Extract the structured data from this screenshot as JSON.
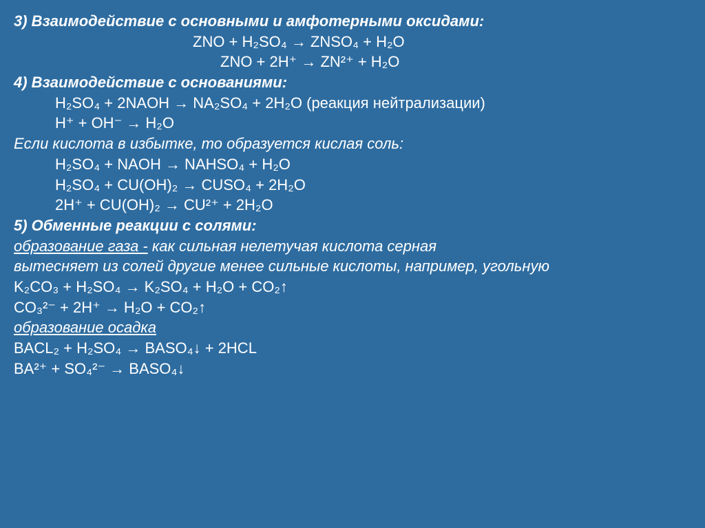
{
  "slide": {
    "bg_color": "#2e6ca0",
    "text_color": "#ffffff",
    "font_family": "Arial",
    "base_fontsize": 22,
    "lines": {
      "h3": "3)    Взаимодействие с основными и амфотерными  оксидами:",
      "eq1": "ZNO + H₂SO₄ → ZNSO₄ + H₂O",
      "eq2": "ZNO + 2H⁺ → ZN²⁺ + H₂O",
      "h4": "4)    Взаимодействие с основаниями:",
      "eq3": "H₂SO₄ + 2NAOH → NA₂SO₄ + 2H₂O (реакция нейтрализации)",
      "eq4": "H⁺ + OH⁻ → H₂O",
      "note1": "Если кислота в избытке, то образуется кислая соль:",
      "eq5": "H₂SO₄ + NAOH → NAHSO₄ + H₂O",
      "eq6": "H₂SO₄ + CU(OH)₂ → CUSO₄ + 2H₂O",
      "eq7": "2H⁺ + CU(OH)₂ → CU²⁺ + 2H₂O",
      "h5": "5)    Обменные реакции с солями:",
      "sub1": "   образование газа -",
      "sub1b": "  как сильная нелетучая кислота серная",
      "note2": "вытесняет из солей другие менее сильные кислоты, например, угольную",
      "eq8": "K₂CO₃ + H₂SO₄ → K₂SO₄ + H₂O + CO₂↑",
      "eq9": "CO₃²⁻ + 2H⁺ → H₂O + CO₂↑",
      "sub2": "образование осадка",
      "eq10": "BACL₂ + H₂SO₄ → BASO₄↓ + 2HCL",
      "eq11": "BA²⁺ + SO₄²⁻ → BASO₄↓"
    }
  }
}
